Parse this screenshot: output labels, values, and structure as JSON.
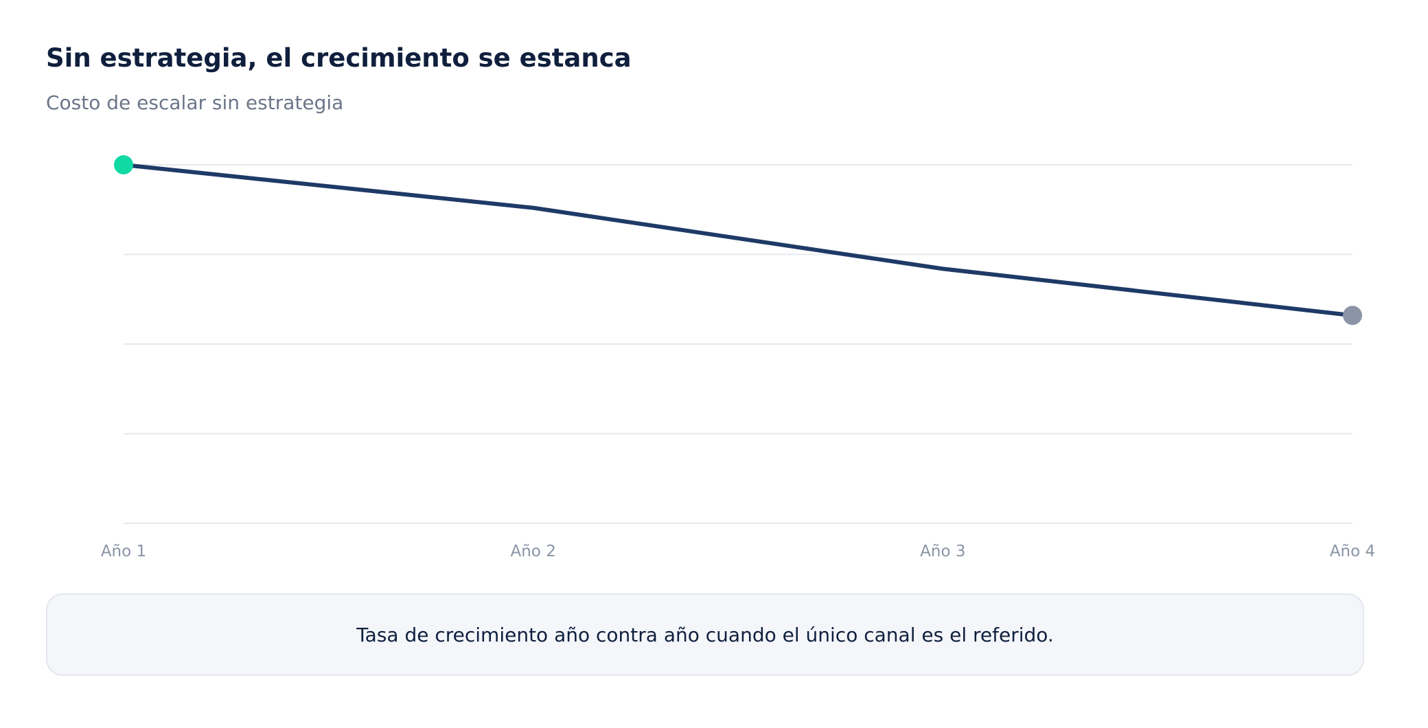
{
  "header": {
    "title": "Sin estrategia, el crecimiento se estanca",
    "subtitle": "Costo de escalar sin estrategia"
  },
  "note": {
    "text": "Tasa de crecimiento año contra año cuando el único canal es el referido."
  },
  "colors": {
    "line": "#1e3a66",
    "start_marker": "#10d9a3",
    "end_marker": "#8a94a6",
    "grid": "#e5e8ee"
  },
  "chart_data": {
    "type": "line",
    "title": "Sin estrategia, el crecimiento se estanca",
    "subtitle": "Costo de escalar sin estrategia",
    "categories": [
      "Año 1",
      "Año 2",
      "Año 3",
      "Año 4"
    ],
    "series": [
      {
        "values": [
          100,
          88,
          71,
          58
        ]
      }
    ],
    "ylim": [
      0,
      100
    ],
    "y_tick_labels_visible": false,
    "grid": true,
    "legend": "none",
    "markers": [
      "start",
      "end"
    ]
  }
}
